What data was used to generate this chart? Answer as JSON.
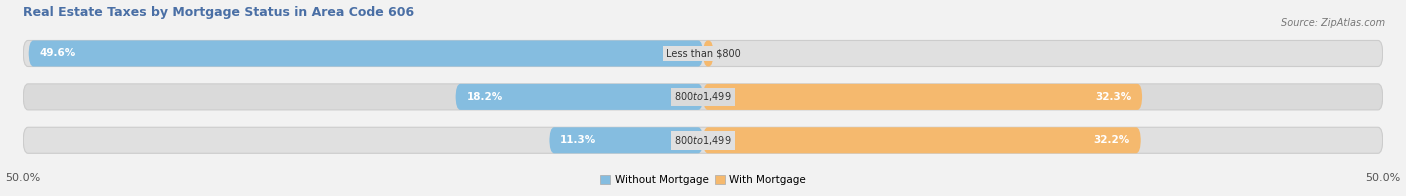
{
  "title": "Real Estate Taxes by Mortgage Status in Area Code 606",
  "source": "Source: ZipAtlas.com",
  "rows": [
    {
      "label": "Less than $800",
      "without_pct": 49.6,
      "with_pct": 0.77
    },
    {
      "label": "$800 to $1,499",
      "without_pct": 18.2,
      "with_pct": 32.3
    },
    {
      "label": "$800 to $1,499",
      "without_pct": 11.3,
      "with_pct": 32.2
    }
  ],
  "axis_max": 50.0,
  "color_without": "#85BDE0",
  "color_with": "#F5B96E",
  "color_bg_bar": "#E8E8E8",
  "color_bg_bar_alt": "#DCDCDC",
  "color_bg_fig": "#F2F2F2",
  "title_color": "#4A6FA5",
  "label_color": "#555555",
  "legend_labels": [
    "Without Mortgage",
    "With Mortgage"
  ]
}
